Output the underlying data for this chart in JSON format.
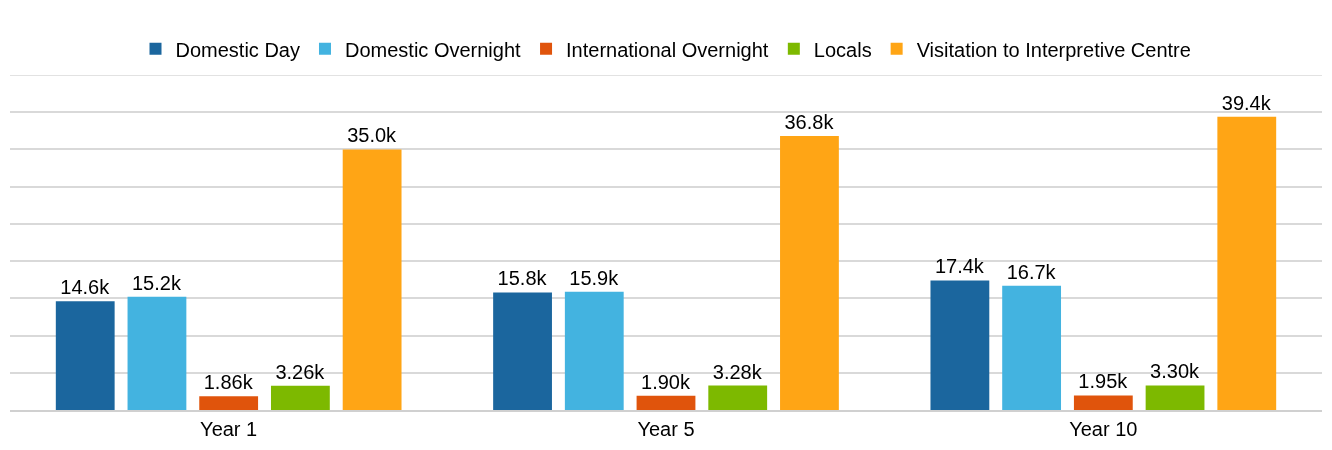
{
  "chart_data": {
    "type": "bar",
    "categories": [
      "Year 1",
      "Year 5",
      "Year 10"
    ],
    "series": [
      {
        "name": "Domestic Day",
        "color": "#1b669e",
        "values": [
          14600,
          15800,
          17400
        ],
        "value_labels": [
          "14.6k",
          "15.8k",
          "17.4k"
        ]
      },
      {
        "name": "Domestic Overnight",
        "color": "#43b3e0",
        "values": [
          15200,
          15900,
          16700
        ],
        "value_labels": [
          "15.2k",
          "15.9k",
          "16.7k"
        ]
      },
      {
        "name": "International Overnight",
        "color": "#e0540c",
        "values": [
          1860,
          1900,
          1950
        ],
        "value_labels": [
          "1.86k",
          "1.90k",
          "1.95k"
        ]
      },
      {
        "name": "Locals",
        "color": "#7db900",
        "values": [
          3260,
          3280,
          3300
        ],
        "value_labels": [
          "3.26k",
          "3.28k",
          "3.30k"
        ]
      },
      {
        "name": "Visitation to Interpretive Centre",
        "color": "#ffa515",
        "values": [
          35000,
          36800,
          39400
        ],
        "value_labels": [
          "35.0k",
          "36.8k",
          "39.4k"
        ]
      }
    ],
    "ylim": [
      0,
      45000
    ],
    "yticks": [
      {
        "value": 0,
        "label": null
      },
      {
        "value": 5000,
        "label": null
      },
      {
        "value": 10000,
        "label": null
      },
      {
        "value": 15000,
        "label": null
      },
      {
        "value": 20000,
        "label": null
      },
      {
        "value": 25000,
        "label": null
      },
      {
        "value": 30000,
        "label": null
      },
      {
        "value": 35000,
        "label": null
      },
      {
        "value": 40000,
        "label": null
      },
      {
        "value": 45000,
        "label": null
      }
    ],
    "grid": "y",
    "legend": "top",
    "tick_labels": "x"
  }
}
